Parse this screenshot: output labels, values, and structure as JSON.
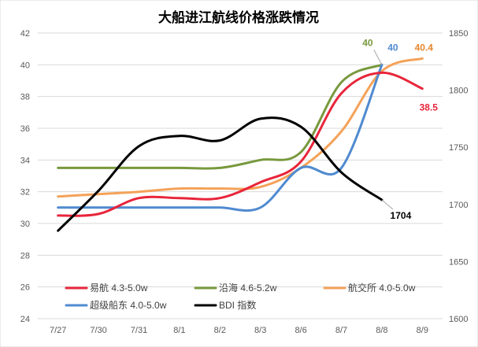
{
  "chart_data": {
    "type": "line",
    "title": "大船进江航线价格涨跌情况",
    "categories": [
      "7/27",
      "7/30",
      "7/31",
      "8/1",
      "8/2",
      "8/3",
      "8/6",
      "8/7",
      "8/8",
      "8/9"
    ],
    "y_left": {
      "min": 24,
      "max": 42,
      "step": 2,
      "ticks": [
        "24",
        "26",
        "28",
        "30",
        "32",
        "34",
        "36",
        "38",
        "40",
        "42"
      ]
    },
    "y_right": {
      "min": 1600,
      "max": 1850,
      "step": 50,
      "ticks": [
        "1600",
        "1650",
        "1700",
        "1750",
        "1800",
        "1850"
      ]
    },
    "gridlines": true,
    "legend_position": "bottom-left",
    "series": [
      {
        "name": "易航 4.3-5.0w",
        "axis": "left",
        "color": "#e8253a",
        "values": [
          30.5,
          30.6,
          31.6,
          31.6,
          31.6,
          32.6,
          33.9,
          38.2,
          39.5,
          38.5
        ],
        "end_label": "38.5",
        "label_color": "#e8253a"
      },
      {
        "name": "沿海 4.6-5.2w",
        "axis": "left",
        "color": "#78993e",
        "values": [
          33.5,
          33.5,
          33.5,
          33.5,
          33.5,
          34.0,
          34.5,
          38.9,
          40.0,
          null
        ],
        "end_label": "40",
        "label_color": "#78993e"
      },
      {
        "name": "航交所 4.0-5.0w",
        "axis": "left",
        "color": "#f4a259",
        "values": [
          31.7,
          31.85,
          32.0,
          32.2,
          32.2,
          32.3,
          33.5,
          35.8,
          39.6,
          40.4
        ],
        "end_label": "40.4",
        "label_color": "#e8852c"
      },
      {
        "name": "超级船东 4.0-5.0w",
        "axis": "left",
        "color": "#4f8ad0",
        "values": [
          31.0,
          31.0,
          31.0,
          31.0,
          31.0,
          31.0,
          33.5,
          33.5,
          40.0,
          null
        ],
        "end_label": "40",
        "label_color": "#4f8ad0"
      },
      {
        "name": "BDI 指数",
        "axis": "right",
        "color": "#000000",
        "values": [
          1677,
          1712,
          1751,
          1760,
          1756,
          1775,
          1768,
          1728,
          1704,
          null
        ],
        "end_label": "1704",
        "label_color": "#000000"
      }
    ]
  }
}
